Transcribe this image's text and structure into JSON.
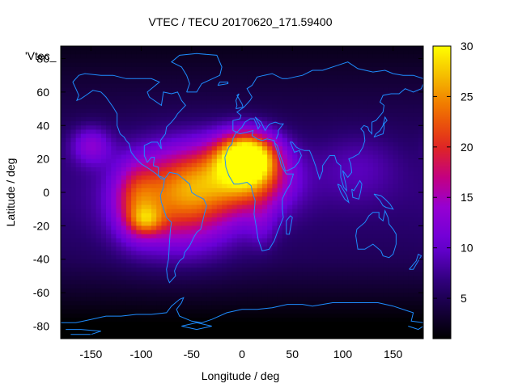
{
  "chart_data": {
    "type": "heatmap",
    "title": "VTEC / TECU 20170620_171.59400",
    "xlabel": "Longitude / deg",
    "ylabel": "Latitude / deg",
    "series_label": "'Vtec_",
    "xlim": [
      -180,
      180
    ],
    "ylim": [
      -87.5,
      87.5
    ],
    "x_ticks": [
      -150,
      -100,
      -50,
      0,
      50,
      100,
      150
    ],
    "y_ticks": [
      -80,
      -60,
      -40,
      -20,
      0,
      20,
      40,
      60,
      80
    ],
    "colorbar": {
      "min": 1,
      "max": 30,
      "ticks": [
        5,
        10,
        15,
        20,
        25,
        30
      ]
    },
    "grid": false,
    "legend": "top-left"
  }
}
